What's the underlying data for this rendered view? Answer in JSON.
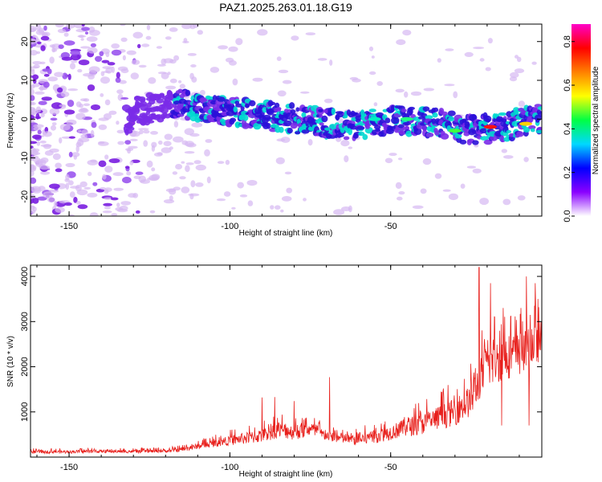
{
  "title": "PAZ1.2025.263.01.18.G19",
  "colors": {
    "snr_line": "#e8201c",
    "spec_dot": "#d6b8f2",
    "spec_mid": "#7a2be8",
    "spec_low": "#2a10d8",
    "spec_hot": "#00d8d0"
  },
  "chart_data": [
    {
      "type": "heatmap",
      "name": "spectrogram",
      "xlabel": "Height of straight line (km)",
      "ylabel": "Frequency (Hz)",
      "xlim": [
        -162,
        -3
      ],
      "ylim": [
        -25,
        24.5
      ],
      "xticks": [
        -150,
        -100,
        -50
      ],
      "yticks": [
        20,
        10,
        0,
        -10,
        -20
      ],
      "xtick_labels": [
        "-150",
        "-100",
        "-50"
      ],
      "ytick_labels": [
        "20",
        "10",
        "0",
        "-10",
        "-20"
      ],
      "ridge": {
        "description_points_km_hz": [
          [
            -130,
            2
          ],
          [
            -115,
            4
          ],
          [
            -100,
            2
          ],
          [
            -80,
            0
          ],
          [
            -60,
            -2
          ],
          [
            -50,
            0
          ],
          [
            -35,
            -1
          ],
          [
            -25,
            -3
          ],
          [
            -15,
            -2
          ],
          [
            -5,
            0
          ]
        ]
      },
      "colorbar": {
        "label": "Normalized spectral amplitude",
        "range": [
          0.0,
          0.88
        ],
        "ticks": [
          0.0,
          0.2,
          0.4,
          0.6,
          0.8
        ],
        "tick_labels": [
          "0.0",
          "0.2",
          "0.4",
          "0.6",
          "0.8"
        ],
        "stops": [
          "#ffffff",
          "#8a00ff",
          "#0000ff",
          "#00d8ff",
          "#00ff44",
          "#ffff00",
          "#ff8000",
          "#ff0000",
          "#ff00c8"
        ]
      }
    },
    {
      "type": "line",
      "name": "snr",
      "xlabel": "Height of straight line (km)",
      "ylabel": "SNR (10 * v/v)",
      "xlim": [
        -162,
        -3
      ],
      "ylim": [
        0,
        4250
      ],
      "xticks": [
        -150,
        -100,
        -50
      ],
      "yticks": [
        1000,
        2000,
        3000,
        4000
      ],
      "xtick_labels": [
        "-150",
        "-100",
        "-50"
      ],
      "ytick_labels": [
        "1000",
        "2000",
        "3000",
        "4000"
      ],
      "envelope": {
        "x": [
          -162,
          -150,
          -140,
          -130,
          -120,
          -115,
          -110,
          -100,
          -90,
          -85,
          -80,
          -75,
          -70,
          -65,
          -60,
          -55,
          -50,
          -45,
          -40,
          -35,
          -30,
          -25,
          -22,
          -20,
          -15,
          -10,
          -5,
          -3
        ],
        "base": [
          80,
          80,
          90,
          90,
          100,
          120,
          180,
          260,
          320,
          420,
          380,
          450,
          350,
          300,
          250,
          300,
          380,
          450,
          500,
          600,
          700,
          900,
          1300,
          1500,
          1700,
          1800,
          2000,
          2200
        ],
        "spread": [
          120,
          120,
          120,
          110,
          120,
          150,
          200,
          350,
          500,
          600,
          550,
          500,
          400,
          350,
          400,
          500,
          550,
          700,
          800,
          900,
          1000,
          1200,
          1500,
          1600,
          1700,
          1600,
          1500,
          1400
        ]
      },
      "spikes": [
        [
          -22.5,
          4200
        ],
        [
          -19,
          3850
        ],
        [
          -15,
          3300
        ],
        [
          -9.5,
          3300
        ],
        [
          -7.8,
          4000
        ],
        [
          -5,
          3850
        ],
        [
          -69,
          1770
        ],
        [
          -80,
          1240
        ],
        [
          -90,
          1320
        ],
        [
          -86,
          1330
        ],
        [
          -15.5,
          700
        ],
        [
          -7,
          700
        ]
      ]
    }
  ]
}
